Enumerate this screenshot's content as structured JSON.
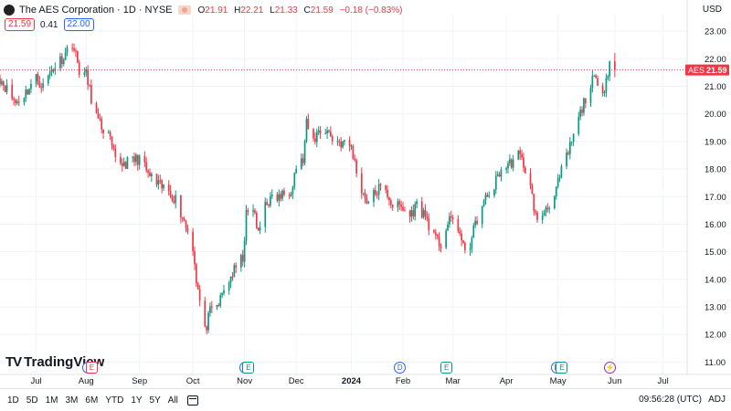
{
  "header": {
    "title": "The AES Corporation · 1D · NYSE",
    "ohlc": [
      {
        "k": "O",
        "v": "21.91"
      },
      {
        "k": "H",
        "v": "22.21"
      },
      {
        "k": "L",
        "v": "21.33"
      },
      {
        "k": "C",
        "v": "21.59"
      }
    ],
    "change": "−0.18 (−0.83%)",
    "sell": "21.59",
    "spread": "0.41",
    "buy": "22.00",
    "currency": "USD"
  },
  "brand": "TradingView",
  "toolbar": {
    "timeframes": [
      "1D",
      "5D",
      "1M",
      "3M",
      "6M",
      "YTD",
      "1Y",
      "5Y",
      "All"
    ],
    "clock": "09:56:28 (UTC)",
    "adj": "ADJ"
  },
  "events": [
    {
      "type": "d",
      "label": "D",
      "x": "2023-08-02"
    },
    {
      "type": "r",
      "label": "E",
      "x": "2023-08-04"
    },
    {
      "type": "d",
      "label": "D",
      "x": "2023-11-01"
    },
    {
      "type": "e",
      "label": "E",
      "x": "2023-11-03"
    },
    {
      "type": "d",
      "label": "D",
      "x": "2024-01-30"
    },
    {
      "type": "e",
      "label": "E",
      "x": "2024-02-26"
    },
    {
      "type": "d",
      "label": "D",
      "x": "2024-04-30"
    },
    {
      "type": "e",
      "label": "E",
      "x": "2024-05-03"
    },
    {
      "type": "s",
      "label": "⚡",
      "x": "2024-05-31"
    }
  ],
  "colors": {
    "up": "#089981",
    "down": "#f23645",
    "last": "#f23645",
    "grid": "#f0f3fa"
  },
  "chart_data": {
    "type": "candlestick",
    "title": "The AES Corporation · 1D · NYSE",
    "x_ticks": [
      {
        "label": "Jul",
        "x": "2023-07-03"
      },
      {
        "label": "Aug",
        "x": "2023-08-01"
      },
      {
        "label": "Sep",
        "x": "2023-09-01"
      },
      {
        "label": "Oct",
        "x": "2023-10-02"
      },
      {
        "label": "Nov",
        "x": "2023-11-01"
      },
      {
        "label": "Dec",
        "x": "2023-12-01"
      },
      {
        "label": "2024",
        "x": "2024-01-02",
        "bold": true
      },
      {
        "label": "Feb",
        "x": "2024-02-01"
      },
      {
        "label": "Mar",
        "x": "2024-03-01"
      },
      {
        "label": "Apr",
        "x": "2024-04-01"
      },
      {
        "label": "May",
        "x": "2024-05-01"
      },
      {
        "label": "Jun",
        "x": "2024-06-03"
      },
      {
        "label": "Jul",
        "x": "2024-07-01"
      }
    ],
    "xlim": [
      "2023-06-12",
      "2024-07-15"
    ],
    "y_ticks": [
      11.0,
      12.0,
      13.0,
      14.0,
      15.0,
      16.0,
      17.0,
      18.0,
      19.0,
      20.0,
      21.0,
      22.0,
      23.0
    ],
    "ylim": [
      10.55,
      23.6
    ],
    "last_price": {
      "label": "AES",
      "value": 21.59
    },
    "close_anchors": [
      [
        "2023-06-12",
        21.3
      ],
      [
        "2023-06-16",
        20.9
      ],
      [
        "2023-06-21",
        20.4
      ],
      [
        "2023-06-26",
        20.7
      ],
      [
        "2023-07-03",
        21.3
      ],
      [
        "2023-07-07",
        21.0
      ],
      [
        "2023-07-12",
        21.6
      ],
      [
        "2023-07-19",
        22.1
      ],
      [
        "2023-07-24",
        22.6
      ],
      [
        "2023-07-28",
        21.6
      ],
      [
        "2023-08-01",
        21.4
      ],
      [
        "2023-08-04",
        20.6
      ],
      [
        "2023-08-08",
        19.7
      ],
      [
        "2023-08-14",
        19.2
      ],
      [
        "2023-08-18",
        18.3
      ],
      [
        "2023-08-23",
        18.2
      ],
      [
        "2023-08-28",
        18.3
      ],
      [
        "2023-09-01",
        18.4
      ],
      [
        "2023-09-06",
        17.8
      ],
      [
        "2023-09-12",
        17.4
      ],
      [
        "2023-09-18",
        17.2
      ],
      [
        "2023-09-22",
        16.9
      ],
      [
        "2023-09-27",
        16.1
      ],
      [
        "2023-10-02",
        15.2
      ],
      [
        "2023-10-04",
        14.0
      ],
      [
        "2023-10-06",
        13.2
      ],
      [
        "2023-10-09",
        12.1
      ],
      [
        "2023-10-12",
        12.8
      ],
      [
        "2023-10-17",
        13.1
      ],
      [
        "2023-10-20",
        13.6
      ],
      [
        "2023-10-25",
        14.2
      ],
      [
        "2023-10-31",
        14.8
      ],
      [
        "2023-11-02",
        16.3
      ],
      [
        "2023-11-06",
        16.6
      ],
      [
        "2023-11-09",
        15.6
      ],
      [
        "2023-11-13",
        16.8
      ],
      [
        "2023-11-17",
        16.9
      ],
      [
        "2023-11-22",
        17.0
      ],
      [
        "2023-11-28",
        17.3
      ],
      [
        "2023-12-01",
        18.1
      ],
      [
        "2023-12-05",
        18.3
      ],
      [
        "2023-12-07",
        19.6
      ],
      [
        "2023-12-11",
        19.0
      ],
      [
        "2023-12-14",
        19.4
      ],
      [
        "2023-12-19",
        19.4
      ],
      [
        "2023-12-22",
        19.1
      ],
      [
        "2024-01-02",
        18.8
      ],
      [
        "2024-01-05",
        17.9
      ],
      [
        "2024-01-09",
        17.1
      ],
      [
        "2024-01-12",
        16.8
      ],
      [
        "2024-01-18",
        17.3
      ],
      [
        "2024-01-23",
        17.1
      ],
      [
        "2024-01-26",
        16.7
      ],
      [
        "2024-01-31",
        16.6
      ],
      [
        "2024-02-05",
        16.3
      ],
      [
        "2024-02-09",
        16.7
      ],
      [
        "2024-02-14",
        16.3
      ],
      [
        "2024-02-20",
        15.4
      ],
      [
        "2024-02-23",
        15.3
      ],
      [
        "2024-02-27",
        16.0
      ],
      [
        "2024-03-01",
        16.2
      ],
      [
        "2024-03-04",
        15.9
      ],
      [
        "2024-03-07",
        15.1
      ],
      [
        "2024-03-11",
        15.3
      ],
      [
        "2024-03-15",
        16.2
      ],
      [
        "2024-03-20",
        16.9
      ],
      [
        "2024-03-25",
        17.4
      ],
      [
        "2024-03-28",
        17.9
      ],
      [
        "2024-04-03",
        18.2
      ],
      [
        "2024-04-08",
        18.5
      ],
      [
        "2024-04-11",
        18.2
      ],
      [
        "2024-04-15",
        17.3
      ],
      [
        "2024-04-19",
        16.0
      ],
      [
        "2024-04-24",
        16.6
      ],
      [
        "2024-04-29",
        17.0
      ],
      [
        "2024-05-03",
        17.9
      ],
      [
        "2024-05-07",
        18.6
      ],
      [
        "2024-05-10",
        19.2
      ],
      [
        "2024-05-14",
        20.0
      ],
      [
        "2024-05-17",
        20.6
      ],
      [
        "2024-05-22",
        21.3
      ],
      [
        "2024-05-24",
        20.9
      ],
      [
        "2024-05-28",
        21.0
      ],
      [
        "2024-05-30",
        21.6
      ],
      [
        "2024-05-31",
        21.9
      ],
      [
        "2024-06-03",
        21.59
      ]
    ]
  }
}
